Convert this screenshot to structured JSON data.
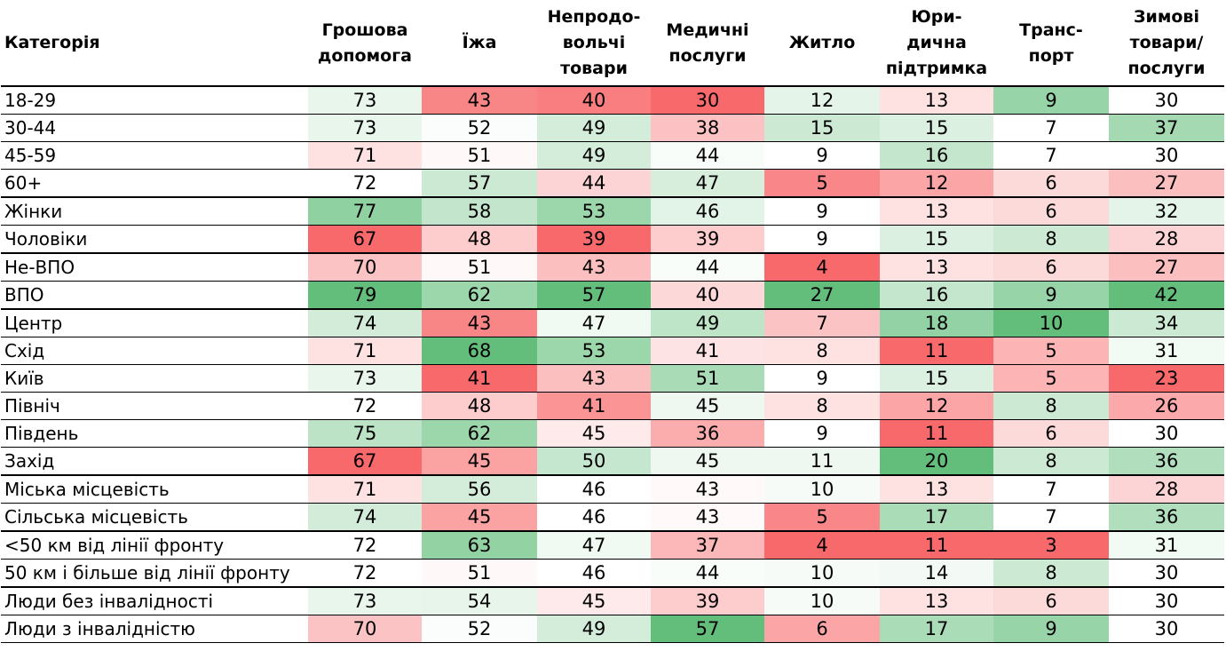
{
  "chart_data": {
    "type": "table",
    "columns": [
      {
        "key": "category",
        "lines": [
          "Категорія"
        ]
      },
      {
        "key": "cash",
        "lines": [
          "Грошова",
          "допомога"
        ]
      },
      {
        "key": "food",
        "lines": [
          "Їжа"
        ]
      },
      {
        "key": "nonfood",
        "lines": [
          "Непродо-",
          "вольчі",
          "товари"
        ]
      },
      {
        "key": "medical",
        "lines": [
          "Медичні",
          "послуги"
        ]
      },
      {
        "key": "housing",
        "lines": [
          "Житло"
        ]
      },
      {
        "key": "legal",
        "lines": [
          "Юри-",
          "дична",
          "підтримка"
        ]
      },
      {
        "key": "transport",
        "lines": [
          "Транс-",
          "порт"
        ]
      },
      {
        "key": "winter",
        "lines": [
          "Зимові",
          "товари/",
          "послуги"
        ]
      }
    ],
    "groups": [
      {
        "rows": [
          {
            "label": "18-29",
            "values": [
              73,
              43,
              40,
              30,
              12,
              13,
              9,
              30
            ]
          },
          {
            "label": "30-44",
            "values": [
              73,
              52,
              49,
              38,
              15,
              15,
              7,
              37
            ]
          },
          {
            "label": "45-59",
            "values": [
              71,
              51,
              49,
              44,
              9,
              16,
              7,
              30
            ]
          },
          {
            "label": "60+",
            "values": [
              72,
              57,
              44,
              47,
              5,
              12,
              6,
              27
            ]
          }
        ]
      },
      {
        "rows": [
          {
            "label": "Жінки",
            "values": [
              77,
              58,
              53,
              46,
              9,
              13,
              6,
              32
            ]
          },
          {
            "label": "Чоловіки",
            "values": [
              67,
              48,
              39,
              39,
              9,
              15,
              8,
              28
            ]
          }
        ]
      },
      {
        "rows": [
          {
            "label": "Не-ВПО",
            "values": [
              70,
              51,
              43,
              44,
              4,
              13,
              6,
              27
            ]
          },
          {
            "label": "ВПО",
            "values": [
              79,
              62,
              57,
              40,
              27,
              16,
              9,
              42
            ]
          }
        ]
      },
      {
        "rows": [
          {
            "label": "Центр",
            "values": [
              74,
              43,
              47,
              49,
              7,
              18,
              10,
              34
            ]
          },
          {
            "label": "Схід",
            "values": [
              71,
              68,
              53,
              41,
              8,
              11,
              5,
              31
            ]
          },
          {
            "label": "Київ",
            "values": [
              73,
              41,
              43,
              51,
              9,
              15,
              5,
              23
            ]
          },
          {
            "label": "Північ",
            "values": [
              72,
              48,
              41,
              45,
              8,
              12,
              8,
              26
            ]
          },
          {
            "label": "Південь",
            "values": [
              75,
              62,
              45,
              36,
              9,
              11,
              6,
              30
            ]
          },
          {
            "label": "Захід",
            "values": [
              67,
              45,
              50,
              45,
              11,
              20,
              8,
              36
            ]
          }
        ]
      },
      {
        "rows": [
          {
            "label": "Міська місцевість",
            "values": [
              71,
              56,
              46,
              43,
              10,
              13,
              7,
              28
            ]
          },
          {
            "label": "Сільська місцевість",
            "values": [
              74,
              45,
              46,
              43,
              5,
              17,
              7,
              36
            ]
          }
        ]
      },
      {
        "rows": [
          {
            "label": "<50 км від лінії фронту",
            "values": [
              72,
              63,
              47,
              37,
              4,
              11,
              3,
              31
            ]
          },
          {
            "label": "50 км і більше від лінії фронту",
            "values": [
              72,
              51,
              46,
              44,
              10,
              14,
              8,
              30
            ]
          }
        ]
      },
      {
        "rows": [
          {
            "label": "Люди без інвалідності",
            "values": [
              73,
              54,
              45,
              39,
              10,
              13,
              6,
              30
            ]
          },
          {
            "label": "Люди з інвалідністю",
            "values": [
              70,
              52,
              49,
              57,
              6,
              17,
              9,
              30
            ]
          }
        ]
      }
    ],
    "color_scale": {
      "low": "#f8696b",
      "mid": "#ffffff",
      "high": "#63be7b",
      "scope": "per-column"
    }
  }
}
